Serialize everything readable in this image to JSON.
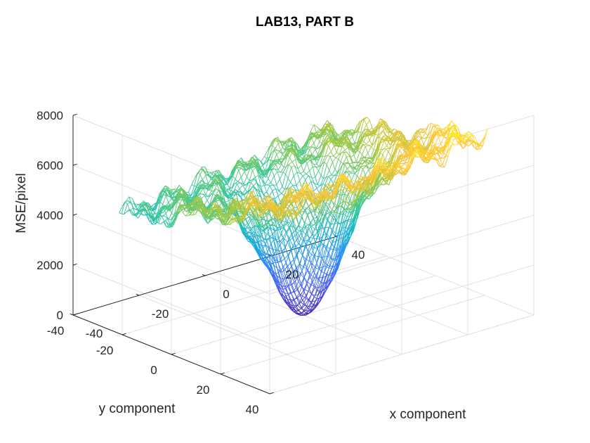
{
  "chart_data": {
    "type": "surface",
    "title": "LAB13, PART B",
    "xlabel": "x component",
    "ylabel": "y component",
    "zlabel": "MSE/pixel",
    "xlim": [
      -40,
      40
    ],
    "ylim": [
      -40,
      40
    ],
    "zlim": [
      0,
      8000
    ],
    "x_ticks": [
      -40,
      -20,
      0,
      20,
      40
    ],
    "y_ticks": [
      -40,
      -20,
      0,
      20,
      40
    ],
    "z_ticks": [
      0,
      2000,
      4000,
      6000,
      8000
    ],
    "x_tick_labels": [
      "-40",
      "-20",
      "0",
      "20",
      "40"
    ],
    "y_tick_labels": [
      "-40",
      "-20",
      "0",
      "20",
      "40"
    ],
    "z_tick_labels": [
      "0",
      "2000",
      "4000",
      "6000",
      "8000"
    ],
    "grid": true,
    "colormap": "parula",
    "surface_style": "mesh",
    "minimum": {
      "x": 0,
      "y": 0,
      "z": 0
    },
    "corner_values": [
      {
        "x": -32,
        "y": 32,
        "z": 6600
      },
      {
        "x": 32,
        "y": 32,
        "z": 7200
      },
      {
        "x": 32,
        "y": -32,
        "z": 5000
      },
      {
        "x": -32,
        "y": -32,
        "z": 4000
      }
    ],
    "data_range": {
      "x": [
        -32,
        32
      ],
      "y": [
        -32,
        32
      ],
      "z": [
        0,
        7800
      ]
    }
  }
}
